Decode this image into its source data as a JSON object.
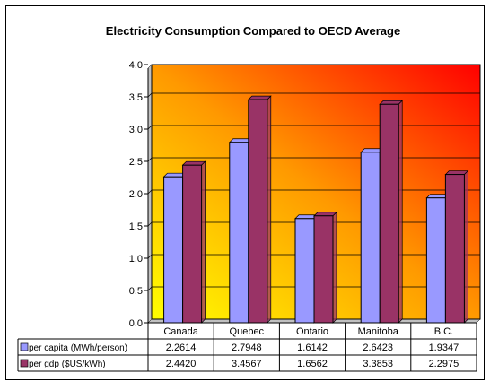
{
  "chart_data": {
    "type": "bar",
    "title": "Electricity Consumption Compared to OECD Average",
    "xlabel": "",
    "ylabel": "",
    "ylim": [
      0,
      4
    ],
    "y_ticks": [
      "0.0",
      "0.5",
      "1.0",
      "1.5",
      "2.0",
      "2.5",
      "3.0",
      "3.5",
      "4.0"
    ],
    "grid": true,
    "legend_placement": "data-table",
    "categories": [
      "Canada",
      "Quebec",
      "Ontario",
      "Manitoba",
      "B.C."
    ],
    "series": [
      {
        "name": "per capita (MWh/person)",
        "color": "#9999ff",
        "values": [
          2.2614,
          2.7948,
          1.6142,
          2.6423,
          1.9347
        ],
        "labels": [
          "2.2614",
          "2.7948",
          "1.6142",
          "2.6423",
          "1.9347"
        ]
      },
      {
        "name": "per gdp  ($US/kWh)",
        "color": "#993366",
        "values": [
          2.442,
          3.4567,
          1.6562,
          3.3853,
          2.2975
        ],
        "labels": [
          "2.4420",
          "3.4567",
          "1.6562",
          "3.3853",
          "2.2975"
        ]
      }
    ],
    "plot_gradient": {
      "colors": [
        "#ffff00",
        "#ff9900",
        "#ff0000"
      ]
    }
  }
}
